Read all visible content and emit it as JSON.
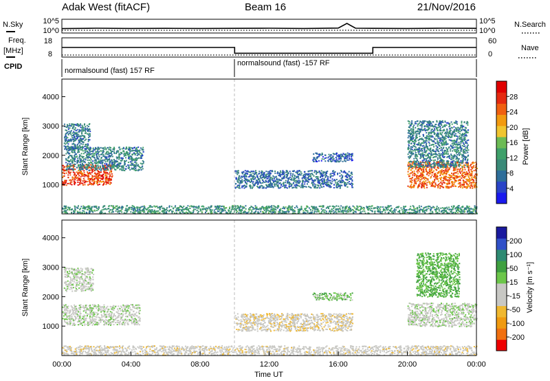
{
  "header": {
    "station": "Adak West (fitACF)",
    "beam": "Beam 16",
    "date": "21/Nov/2016"
  },
  "side_labels": {
    "nsky": "N.Sky",
    "freq_line1": "Freq.",
    "freq_line2": "[MHz]",
    "cpid": "CPID",
    "nsearch": "N.Search",
    "nave": "Nave"
  },
  "cpid_labels": [
    "normalsound (fast) 157 RF",
    "normalsound (fast) -157 RF"
  ],
  "colors": {
    "power_scale": [
      "#1a1aee",
      "#2a45c8",
      "#2e6e9a",
      "#3a8a78",
      "#3fa06a",
      "#6cbb55",
      "#f0c530",
      "#f29a10",
      "#f06010",
      "#e52a10",
      "#e00000"
    ],
    "velocity_scale": [
      "#ee0000",
      "#f07010",
      "#f09a10",
      "#f0b830",
      "#c8c8c4",
      "#c8c8c4",
      "#6cc64a",
      "#3fa040",
      "#2e8a72",
      "#3050c8",
      "#1a1a9e"
    ]
  },
  "chart_data": [
    {
      "type": "line",
      "panel": "noise",
      "x_range": [
        0,
        24
      ],
      "y_ticks_left": [
        "10^5",
        "10^0"
      ],
      "y_ticks_right": [
        "10^5",
        "10^0"
      ],
      "series": [
        {
          "name": "N.Sky",
          "x": [
            0,
            2,
            4,
            6,
            8,
            10,
            12,
            14,
            16,
            16.5,
            17,
            18,
            20,
            22,
            24
          ],
          "y": [
            0.32,
            0.35,
            0.33,
            0.34,
            0.33,
            0.34,
            0.35,
            0.33,
            0.36,
            0.7,
            0.35,
            0.34,
            0.33,
            0.35,
            0.34
          ]
        },
        {
          "name": "N.Search",
          "x": [
            0,
            4,
            8,
            12,
            16,
            20,
            24
          ],
          "y": [
            0.2,
            0.2,
            0.2,
            0.2,
            0.2,
            0.2,
            0.2
          ]
        }
      ]
    },
    {
      "type": "line",
      "panel": "frequency",
      "x_range": [
        0,
        24
      ],
      "y_ticks_left": [
        "18",
        "8"
      ],
      "y_ticks_right": [
        "60",
        "0"
      ],
      "series": [
        {
          "name": "Freq.",
          "x": [
            0,
            10,
            10,
            18,
            18,
            24
          ],
          "y": [
            13,
            13,
            10,
            10,
            13,
            13
          ]
        },
        {
          "name": "Nave",
          "x": [
            0,
            24
          ],
          "y": [
            0.2,
            0.2
          ]
        }
      ]
    },
    {
      "type": "heatmap",
      "panel": "power",
      "xlabel": "",
      "ylabel": "Slant Range [km]",
      "x_range": [
        0,
        24
      ],
      "ylim": [
        0,
        4600
      ],
      "y_ticks": [
        1000,
        2000,
        3000,
        4000
      ],
      "colorbar_label": "Power [dB]",
      "colorbar_ticks": [
        4,
        8,
        12,
        16,
        20,
        24,
        28
      ],
      "scatter_regions": [
        {
          "t_start": 0.0,
          "t_end": 2.9,
          "r_min": 1000,
          "r_max": 1700,
          "db": 26
        },
        {
          "t_start": 0.2,
          "t_end": 4.7,
          "r_min": 1500,
          "r_max": 2300,
          "db": 8
        },
        {
          "t_start": 0.1,
          "t_end": 1.6,
          "r_min": 2200,
          "r_max": 3100,
          "db": 7
        },
        {
          "t_start": 10.0,
          "t_end": 16.8,
          "r_min": 900,
          "r_max": 1500,
          "db": 6
        },
        {
          "t_start": 14.5,
          "t_end": 16.8,
          "r_min": 1800,
          "r_max": 2100,
          "db": 5
        },
        {
          "t_start": 20.0,
          "t_end": 24.0,
          "r_min": 900,
          "r_max": 1800,
          "db": 24
        },
        {
          "t_start": 20.0,
          "t_end": 23.5,
          "r_min": 1600,
          "r_max": 3200,
          "db": 8
        },
        {
          "t_start": 0.0,
          "t_end": 24.0,
          "r_min": 30,
          "r_max": 300,
          "db": 10
        }
      ]
    },
    {
      "type": "heatmap",
      "panel": "velocity",
      "xlabel": "Time UT",
      "ylabel": "Slant Range [km]",
      "x_range": [
        0,
        24
      ],
      "ylim": [
        0,
        4600
      ],
      "y_ticks": [
        1000,
        2000,
        3000,
        4000
      ],
      "x_ticks": [
        "00:00",
        "04:00",
        "08:00",
        "12:00",
        "16:00",
        "20:00",
        "00:00"
      ],
      "colorbar_label": "Velocity [m s⁻¹]",
      "colorbar_ticks": [
        -200,
        -100,
        -50,
        -15,
        15,
        50,
        100,
        200
      ],
      "scatter_regions": [
        {
          "t_start": 0.0,
          "t_end": 4.5,
          "r_min": 1050,
          "r_max": 1750,
          "vel": 0
        },
        {
          "t_start": 0.1,
          "t_end": 1.8,
          "r_min": 2200,
          "r_max": 3000,
          "vel": 0
        },
        {
          "t_start": 10.0,
          "t_end": 16.8,
          "r_min": 850,
          "r_max": 1450,
          "vel": -40
        },
        {
          "t_start": 14.5,
          "t_end": 16.8,
          "r_min": 1900,
          "r_max": 2150,
          "vel": 40
        },
        {
          "t_start": 20.0,
          "t_end": 24.0,
          "r_min": 1000,
          "r_max": 1800,
          "vel": 0
        },
        {
          "t_start": 20.5,
          "t_end": 23.0,
          "r_min": 2000,
          "r_max": 3500,
          "vel": 60
        },
        {
          "t_start": 0.0,
          "t_end": 24.0,
          "r_min": 30,
          "r_max": 350,
          "vel": -30
        }
      ]
    }
  ]
}
